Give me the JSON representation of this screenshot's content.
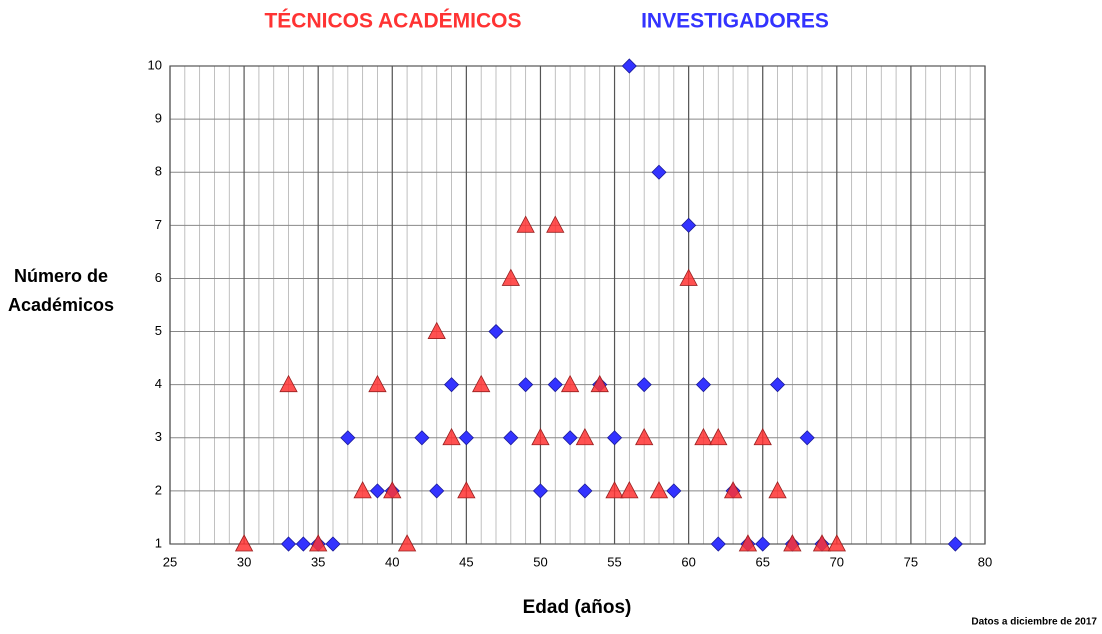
{
  "chart_data": {
    "type": "scatter",
    "x_label": "Edad (años)",
    "y_label": "Número de Académicos",
    "note": "Datos a diciembre de 2017",
    "xlim": [
      25,
      80
    ],
    "xticks": [
      25,
      30,
      35,
      40,
      45,
      50,
      55,
      60,
      65,
      70,
      75,
      80
    ],
    "ylim": [
      1,
      10
    ],
    "yticks": [
      1,
      2,
      3,
      4,
      5,
      6,
      7,
      8,
      9,
      10
    ],
    "grid": true,
    "minor_grid": true,
    "series": [
      {
        "name": "INVESTIGADORES",
        "color": "#3333ff",
        "marker": "diamond",
        "x": [
          33,
          34,
          35,
          36,
          37,
          39,
          40,
          42,
          43,
          44,
          45,
          47,
          48,
          49,
          50,
          51,
          52,
          53,
          54,
          55,
          56,
          57,
          58,
          59,
          60,
          61,
          62,
          63,
          64,
          65,
          66,
          67,
          68,
          69,
          78
        ],
        "values": [
          1,
          1,
          1,
          1,
          3,
          2,
          2,
          3,
          2,
          4,
          3,
          5,
          3,
          4,
          2,
          4,
          3,
          2,
          4,
          3,
          10,
          4,
          8,
          2,
          7,
          4,
          1,
          2,
          1,
          1,
          4,
          1,
          3,
          1,
          1
        ]
      },
      {
        "name": "TÉCNICOS ACADÉMICOS",
        "color": "#ff3333",
        "marker": "triangle",
        "x": [
          30,
          33,
          35,
          38,
          39,
          40,
          41,
          43,
          44,
          45,
          46,
          48,
          49,
          50,
          51,
          52,
          53,
          54,
          55,
          56,
          57,
          58,
          60,
          61,
          62,
          63,
          64,
          65,
          66,
          67,
          69,
          70
        ],
        "values": [
          1,
          4,
          1,
          2,
          4,
          2,
          1,
          5,
          3,
          2,
          4,
          6,
          7,
          3,
          7,
          4,
          3,
          4,
          2,
          2,
          3,
          2,
          6,
          3,
          3,
          2,
          1,
          3,
          2,
          1,
          1,
          1
        ]
      }
    ]
  }
}
